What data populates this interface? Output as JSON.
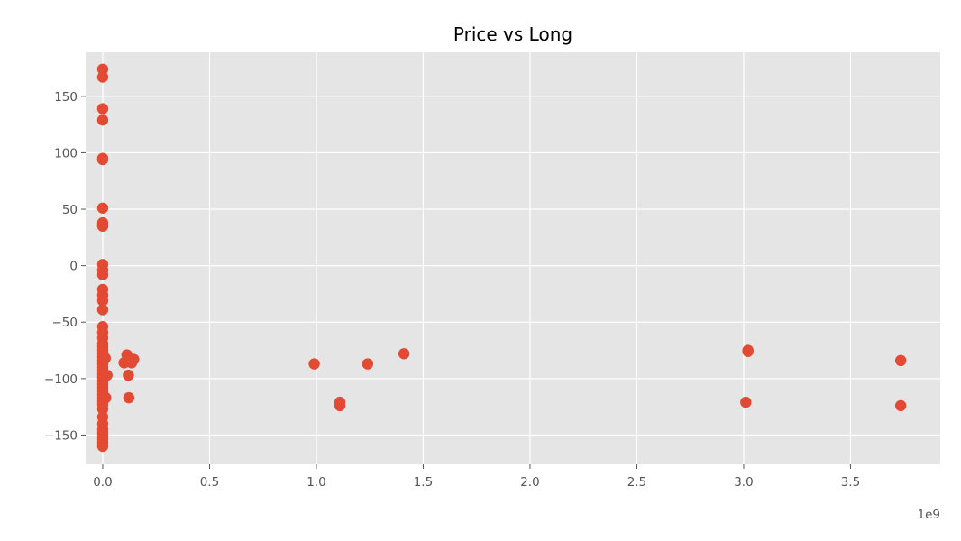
{
  "chart_data": {
    "type": "scatter",
    "title": "Price vs Long",
    "xlabel": "",
    "ylabel": "",
    "x_offset_label": "1e9",
    "x_ticks": [
      0.0,
      0.5,
      1.0,
      1.5,
      2.0,
      2.5,
      3.0,
      3.5
    ],
    "x_tick_labels": [
      "0.0",
      "0.5",
      "1.0",
      "1.5",
      "2.0",
      "2.5",
      "3.0",
      "3.5"
    ],
    "y_ticks": [
      -150,
      -100,
      -50,
      0,
      50,
      100,
      150
    ],
    "y_tick_labels": [
      "−150",
      "−100",
      "−50",
      "0",
      "50",
      "100",
      "150"
    ],
    "xlim": [
      -0.08,
      3.92
    ],
    "ylim": [
      -176,
      189
    ],
    "grid": true,
    "style": "ggplot",
    "colors": {
      "background": "#e5e5e5",
      "grid": "#ffffff",
      "marker": "#e24a33",
      "tick": "#555555"
    },
    "x_unit_scale": 1000000000,
    "points": [
      [
        0.0,
        174
      ],
      [
        0.0,
        167
      ],
      [
        0.0,
        139
      ],
      [
        0.0,
        129
      ],
      [
        0.0,
        95
      ],
      [
        0.0,
        94
      ],
      [
        0.0,
        51
      ],
      [
        0.0,
        38
      ],
      [
        0.0,
        36
      ],
      [
        0.0,
        35
      ],
      [
        0.0,
        1
      ],
      [
        0.0,
        -4
      ],
      [
        0.0,
        -8
      ],
      [
        0.0,
        -21
      ],
      [
        0.0,
        -26
      ],
      [
        0.0,
        -31
      ],
      [
        0.0,
        -39
      ],
      [
        0.0,
        -54
      ],
      [
        0.0,
        -59
      ],
      [
        0.0,
        -64
      ],
      [
        0.0,
        -69
      ],
      [
        0.0,
        -72
      ],
      [
        0.0,
        -75
      ],
      [
        0.0,
        -78
      ],
      [
        0.0,
        -81
      ],
      [
        0.0,
        -84
      ],
      [
        0.0,
        -87
      ],
      [
        0.0,
        -90
      ],
      [
        0.0,
        -93
      ],
      [
        0.0,
        -96
      ],
      [
        0.0,
        -99
      ],
      [
        0.0,
        -102
      ],
      [
        0.0,
        -105
      ],
      [
        0.0,
        -108
      ],
      [
        0.0,
        -111
      ],
      [
        0.0,
        -114
      ],
      [
        0.0,
        -117
      ],
      [
        0.0,
        -120
      ],
      [
        0.0,
        -123
      ],
      [
        0.0,
        -127
      ],
      [
        0.0,
        -134
      ],
      [
        0.0,
        -140
      ],
      [
        0.0,
        -145
      ],
      [
        0.0,
        -148
      ],
      [
        0.0,
        -151
      ],
      [
        0.0,
        -154
      ],
      [
        0.0,
        -157
      ],
      [
        0.0,
        -160
      ],
      [
        0.012,
        -82
      ],
      [
        0.012,
        -97
      ],
      [
        0.014,
        -117
      ],
      [
        0.02,
        -97
      ],
      [
        0.1,
        -86
      ],
      [
        0.113,
        -79
      ],
      [
        0.12,
        -97
      ],
      [
        0.122,
        -117
      ],
      [
        0.135,
        -86
      ],
      [
        0.145,
        -83
      ],
      [
        0.99,
        -87
      ],
      [
        1.11,
        -121
      ],
      [
        1.11,
        -124
      ],
      [
        1.24,
        -87
      ],
      [
        1.41,
        -78
      ],
      [
        3.01,
        -121
      ],
      [
        3.02,
        -75
      ],
      [
        3.02,
        -76
      ],
      [
        3.735,
        -84
      ],
      [
        3.735,
        -124
      ]
    ]
  }
}
